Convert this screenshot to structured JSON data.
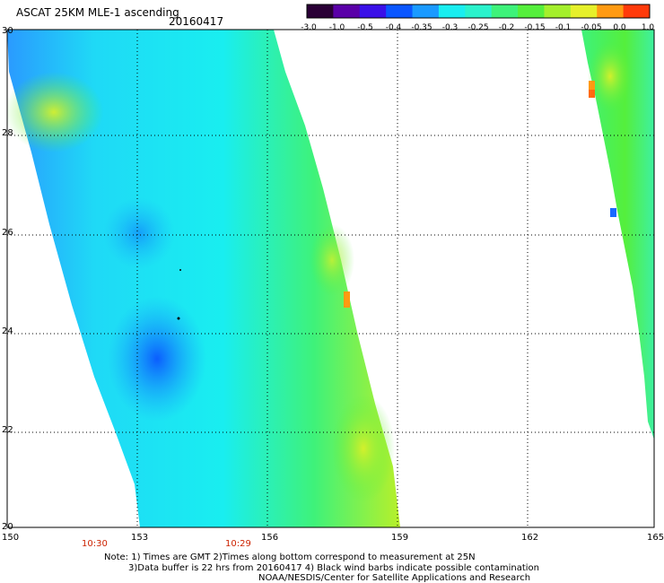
{
  "header": {
    "title": "ASCAT 25KM MLE-1 ascending",
    "date": "20160417"
  },
  "colorbar": {
    "ticks": [
      "-3.0",
      "-1.0",
      "-0.5",
      "-0.4",
      "-0.35",
      "-0.3",
      "-0.25",
      "-0.2",
      "-0.15",
      "-0.1",
      "-0.05",
      "0.0",
      "1.0"
    ],
    "colors": [
      "#2a0036",
      "#5a00a8",
      "#3a10e8",
      "#0a56ff",
      "#1a9aff",
      "#19eef0",
      "#2af2cc",
      "#3ef27a",
      "#55ef3c",
      "#a4ef2c",
      "#e6f02a",
      "#ff9a12",
      "#ff3a0a"
    ]
  },
  "map": {
    "lat_labels": [
      "30",
      "28",
      "26",
      "24",
      "22",
      "20"
    ],
    "lon_labels": [
      "150",
      "153",
      "156",
      "159",
      "162",
      "165"
    ],
    "time_labels": [
      "10:30",
      "10:29"
    ]
  },
  "footer": {
    "note_line1": "Note: 1) Times are GMT 2)Times along bottom correspond to measurement at 25N",
    "note_line2": "3)Data buffer is 22 hrs from 20160417 4) Black wind barbs indicate possible contamination",
    "note_line3": "NOAA/NESDIS/Center for Satellite Applications and Research"
  }
}
